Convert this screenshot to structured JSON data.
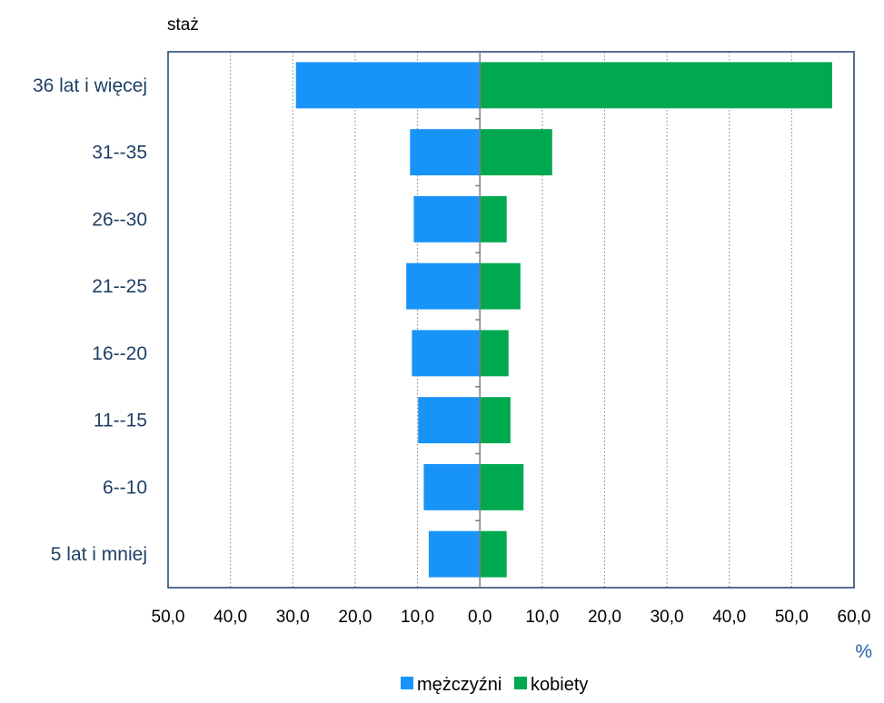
{
  "chart_data": {
    "type": "bar",
    "orientation": "horizontal",
    "ylabel": "staż",
    "xlabel": "%",
    "categories": [
      "36 lat i więcej",
      "31--35",
      "26--30",
      "21--25",
      "16--20",
      "11--15",
      "6--10",
      "5 lat i mniej"
    ],
    "series": [
      {
        "name": "mężczyźni",
        "color": "#1893f8",
        "side": "left",
        "values": [
          29.5,
          11.2,
          10.6,
          11.8,
          10.9,
          9.9,
          9.0,
          8.2
        ]
      },
      {
        "name": "kobiety",
        "color": "#00a94f",
        "side": "right",
        "values": [
          56.5,
          11.6,
          4.3,
          6.5,
          4.6,
          4.9,
          7.0,
          4.3
        ]
      }
    ],
    "xlim": [
      -50,
      60
    ],
    "xticks": [
      -50,
      -40,
      -30,
      -20,
      -10,
      0,
      10,
      20,
      30,
      40,
      50,
      60
    ],
    "xtick_labels": [
      "50,0",
      "40,0",
      "30,0",
      "20,0",
      "10,0",
      "0,0",
      "10,0",
      "20,0",
      "30,0",
      "40,0",
      "50,0",
      "60,0"
    ],
    "grid": "vertical dotted",
    "legend_position": "bottom-right"
  }
}
